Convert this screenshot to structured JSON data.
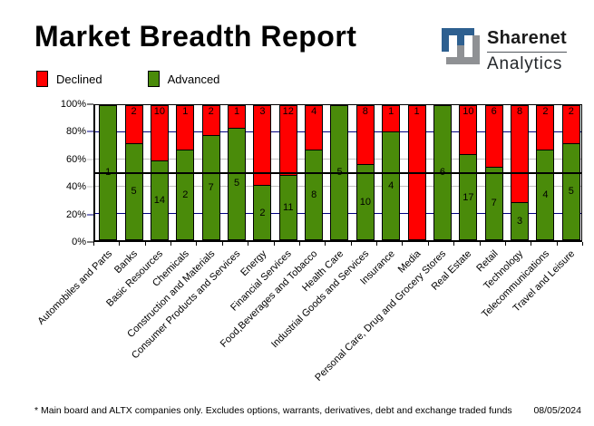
{
  "title": "Market Breadth Report",
  "logo": {
    "name_top": "Sharenet",
    "name_bottom": "Analytics",
    "mark_blue": "#2E6090",
    "mark_gray": "#8F9194"
  },
  "legend": {
    "items": [
      {
        "label": "Declined",
        "color": "#FF0000"
      },
      {
        "label": "Advanced",
        "color": "#4A8B0A"
      }
    ]
  },
  "chart_data": {
    "type": "bar",
    "subtype": "100-percent-stacked-column",
    "title": "Market Breadth Report",
    "categories": [
      "Automobiles and Parts",
      "Banks",
      "Basic Resources",
      "Chemicals",
      "Construction and Materials",
      "Consumer Products and Services",
      "Energy",
      "Financial Services",
      "Food,Beverages and Tobacco",
      "Health Care",
      "Industrial Goods and Services",
      "Insurance",
      "Media",
      "Personal Care, Drug and Grocery Stores",
      "Real Estate",
      "Retail",
      "Technology",
      "Telecommunications",
      "Travel and Leisure"
    ],
    "series": [
      {
        "name": "Advanced",
        "color": "#4A8B0A",
        "values": [
          1,
          5,
          14,
          2,
          7,
          5,
          2,
          11,
          8,
          5,
          10,
          4,
          0,
          6,
          17,
          7,
          3,
          4,
          5
        ]
      },
      {
        "name": "Declined",
        "color": "#FF0000",
        "values": [
          0,
          2,
          10,
          1,
          2,
          1,
          3,
          12,
          4,
          0,
          8,
          1,
          1,
          0,
          10,
          6,
          8,
          2,
          2
        ]
      }
    ],
    "xlabel": "",
    "ylabel": "",
    "ylim": [
      0,
      100
    ],
    "y_ticks": [
      "0%",
      "20%",
      "40%",
      "60%",
      "80%",
      "100%"
    ],
    "legend_position": "top-left",
    "gridlines": {
      "navy_at": [
        20,
        80
      ],
      "navy_color": "#000080",
      "silver_at": [
        40,
        60
      ],
      "silver_color": "#C0C0C0",
      "mid_at": 50,
      "mid_color": "#000000"
    }
  },
  "footer": {
    "note": "* Main board and ALTX companies only. Excludes options, warrants, derivatives, debt and exchange traded funds",
    "date": "08/05/2024"
  }
}
